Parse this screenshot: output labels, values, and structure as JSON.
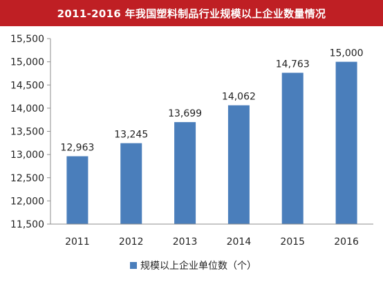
{
  "chart_data": {
    "type": "bar",
    "title": "2011-2016 年我国塑料制品行业规模以上企业数量情况",
    "categories": [
      "2011",
      "2012",
      "2013",
      "2014",
      "2015",
      "2016"
    ],
    "series": [
      {
        "name": "规模以上企业单位数（个）",
        "values": [
          12963,
          13245,
          13699,
          14062,
          14763,
          15000
        ]
      }
    ],
    "data_labels": [
      "12,963",
      "13,245",
      "13,699",
      "14,062",
      "14,763",
      "15,000"
    ],
    "y_ticks": [
      "11,500",
      "12,000",
      "12,500",
      "13,000",
      "13,500",
      "14,000",
      "14,500",
      "15,000",
      "15,500"
    ],
    "ylim": [
      11500,
      15500
    ],
    "xlabel": "",
    "ylabel": "",
    "grid": false,
    "legend_position": "bottom",
    "colors": {
      "bar": "#4a7ebb",
      "title_background": "#bf1f24",
      "title_text": "#ffffff"
    }
  }
}
